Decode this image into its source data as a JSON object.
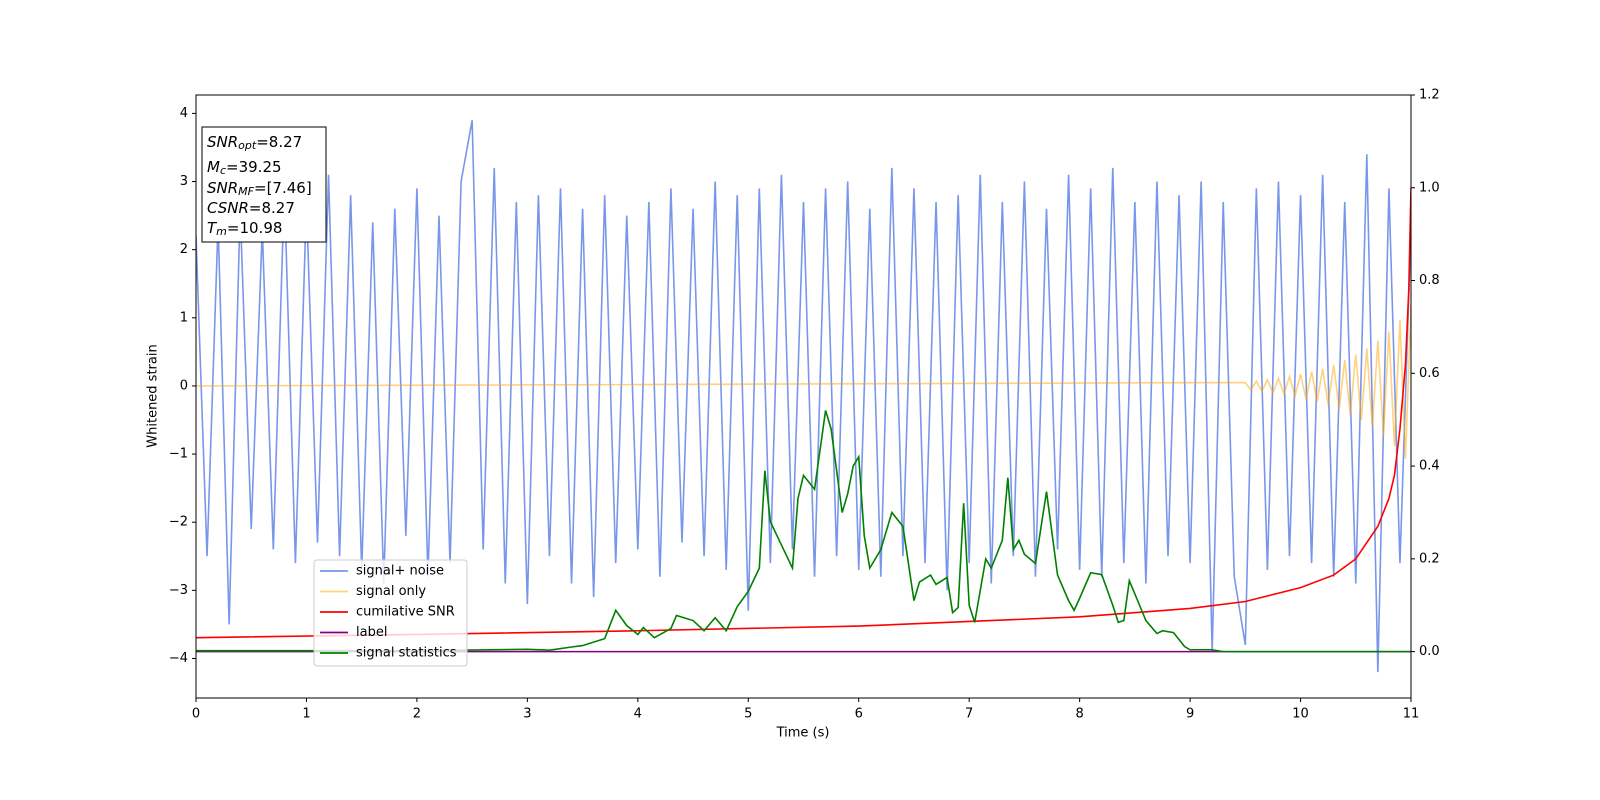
{
  "chart_data": {
    "type": "line",
    "xlabel": "Time (s)",
    "ylabel": "Whitened strain",
    "xlim": [
      0,
      11
    ],
    "ylim": [
      -4.58,
      4.27
    ],
    "y2lim": [
      -0.1,
      1.2
    ],
    "xticks": [
      0,
      1,
      2,
      3,
      4,
      5,
      6,
      7,
      8,
      9,
      10,
      11
    ],
    "yticks": [
      {
        "value": -4,
        "label": "−4"
      },
      {
        "value": -3,
        "label": "−3"
      },
      {
        "value": -2,
        "label": "−2"
      },
      {
        "value": -1,
        "label": "−1"
      },
      0,
      1,
      2,
      3,
      4
    ],
    "y2ticks": [
      {
        "value": 0,
        "label": "0.0"
      },
      0.2,
      0.4,
      0.6,
      0.8,
      {
        "value": 1,
        "label": "1.0"
      },
      1.2
    ],
    "legend": "lower left",
    "annotation": [
      {
        "base": "SNR",
        "sub": "opt",
        "text": "=8.27"
      },
      {
        "base": "M",
        "sub": "c",
        "text": "=39.25"
      },
      {
        "base": "SNR",
        "sub": "MF",
        "text": "=[7.46]"
      },
      {
        "base": "CSNR",
        "text": "=8.27"
      },
      {
        "base": "T",
        "sub": "m",
        "text": "=10.98"
      }
    ],
    "series": [
      {
        "name": "signal+ noise",
        "color": "#4169e1",
        "opacity": 0.7,
        "axis": "y",
        "x": [
          0,
          0.1,
          0.2,
          0.3,
          0.4,
          0.5,
          0.6,
          0.7,
          0.8,
          0.9,
          1,
          1.1,
          1.2,
          1.3,
          1.4,
          1.5,
          1.6,
          1.7,
          1.8,
          1.9,
          2,
          2.1,
          2.2,
          2.3,
          2.4,
          2.5,
          2.6,
          2.7,
          2.8,
          2.9,
          3,
          3.1,
          3.2,
          3.3,
          3.4,
          3.5,
          3.6,
          3.7,
          3.8,
          3.9,
          4,
          4.1,
          4.2,
          4.3,
          4.4,
          4.5,
          4.6,
          4.7,
          4.8,
          4.9,
          5,
          5.1,
          5.2,
          5.3,
          5.4,
          5.5,
          5.6,
          5.7,
          5.8,
          5.9,
          6,
          6.1,
          6.2,
          6.3,
          6.4,
          6.5,
          6.6,
          6.7,
          6.8,
          6.9,
          7,
          7.1,
          7.2,
          7.3,
          7.4,
          7.5,
          7.6,
          7.7,
          7.8,
          7.9,
          8,
          8.1,
          8.2,
          8.3,
          8.4,
          8.5,
          8.6,
          8.7,
          8.8,
          8.9,
          9,
          9.1,
          9.2,
          9.3,
          9.4,
          9.5,
          9.6,
          9.7,
          9.8,
          9.9,
          10,
          10.1,
          10.2,
          10.3,
          10.4,
          10.5,
          10.6,
          10.7,
          10.8,
          10.9,
          11
        ],
        "values": [
          2.2,
          -2.5,
          2.4,
          -3.5,
          2.6,
          -2.1,
          2.3,
          -2.4,
          2.9,
          -2.6,
          2.7,
          -2.3,
          3.1,
          -2.5,
          2.8,
          -2.7,
          2.4,
          -2.9,
          2.6,
          -2.2,
          2.9,
          -2.8,
          2.5,
          -2.6,
          3.0,
          3.9,
          -2.4,
          3.2,
          -2.9,
          2.7,
          -3.2,
          2.8,
          -2.5,
          2.9,
          -2.9,
          2.6,
          -3.1,
          2.8,
          -2.6,
          2.5,
          -2.4,
          2.7,
          -2.8,
          2.9,
          -2.3,
          2.6,
          -2.5,
          3.0,
          -2.7,
          2.8,
          -3.3,
          2.9,
          -2.6,
          3.1,
          -2.4,
          2.7,
          -2.8,
          2.9,
          -2.5,
          3.0,
          -2.7,
          2.6,
          -2.8,
          3.2,
          -2.5,
          2.9,
          -2.6,
          2.7,
          -3.0,
          2.8,
          -2.6,
          3.1,
          -2.9,
          2.7,
          -2.5,
          3.0,
          -2.8,
          2.6,
          -2.4,
          3.1,
          -2.7,
          2.9,
          -2.8,
          3.2,
          -2.6,
          2.7,
          -2.9,
          3.0,
          -2.5,
          2.8,
          -2.6,
          3.0,
          -3.9,
          2.7,
          -2.8,
          -3.8,
          2.9,
          -2.7,
          3.0,
          -2.5,
          2.8,
          -2.6,
          3.1,
          -2.8,
          2.7,
          -2.9,
          3.4,
          -4.2,
          2.9,
          -2.6,
          2.3
        ]
      },
      {
        "name": "signal only",
        "color": "#ffa500",
        "opacity": 0.5,
        "axis": "y",
        "x": [
          0,
          9.5,
          9.55,
          9.6,
          9.65,
          9.7,
          9.75,
          9.8,
          9.85,
          9.9,
          9.95,
          10,
          10.05,
          10.1,
          10.15,
          10.2,
          10.25,
          10.3,
          10.35,
          10.4,
          10.45,
          10.5,
          10.55,
          10.6,
          10.65,
          10.7,
          10.75,
          10.8,
          10.85,
          10.9,
          10.95,
          11
        ],
        "values": [
          0,
          0.05,
          -0.06,
          0.07,
          -0.08,
          0.09,
          -0.1,
          0.11,
          -0.12,
          0.14,
          -0.15,
          0.17,
          -0.19,
          0.21,
          -0.23,
          0.25,
          -0.28,
          0.31,
          -0.34,
          0.38,
          -0.42,
          0.46,
          -0.5,
          0.55,
          -0.6,
          0.66,
          -0.73,
          0.8,
          -0.88,
          0.97,
          -1.07,
          1.2
        ]
      },
      {
        "name": "cumilative SNR",
        "color": "#ff0000",
        "opacity": 1,
        "axis": "y2",
        "x": [
          0,
          2,
          4,
          6,
          8,
          9,
          9.5,
          10,
          10.3,
          10.5,
          10.7,
          10.8,
          10.85,
          10.9,
          10.95,
          10.98,
          11
        ],
        "values": [
          0.03,
          0.037,
          0.045,
          0.055,
          0.075,
          0.093,
          0.108,
          0.138,
          0.165,
          0.2,
          0.27,
          0.33,
          0.38,
          0.48,
          0.62,
          0.78,
          1.0
        ]
      },
      {
        "name": "label",
        "color": "#800080",
        "opacity": 1,
        "axis": "y2",
        "x": [
          0,
          11
        ],
        "values": [
          0,
          0
        ]
      },
      {
        "name": "signal statistics",
        "color": "#008000",
        "opacity": 1,
        "axis": "y2",
        "x": [
          0,
          1,
          2,
          3,
          3.2,
          3.4,
          3.5,
          3.7,
          3.8,
          3.9,
          4.0,
          4.05,
          4.15,
          4.3,
          4.35,
          4.5,
          4.6,
          4.7,
          4.8,
          4.9,
          5.0,
          5.1,
          5.15,
          5.2,
          5.3,
          5.4,
          5.45,
          5.5,
          5.6,
          5.7,
          5.75,
          5.85,
          5.9,
          5.95,
          6.0,
          6.05,
          6.1,
          6.2,
          6.3,
          6.4,
          6.5,
          6.55,
          6.65,
          6.7,
          6.8,
          6.85,
          6.9,
          6.95,
          7.0,
          7.05,
          7.15,
          7.2,
          7.3,
          7.35,
          7.4,
          7.45,
          7.5,
          7.6,
          7.7,
          7.8,
          7.9,
          7.95,
          8.0,
          8.1,
          8.2,
          8.3,
          8.35,
          8.4,
          8.45,
          8.6,
          8.7,
          8.75,
          8.85,
          8.95,
          9.0,
          9.2,
          9.3,
          11
        ],
        "values": [
          0.002,
          0.002,
          0.002,
          0.005,
          0.003,
          0.01,
          0.013,
          0.028,
          0.089,
          0.056,
          0.037,
          0.052,
          0.03,
          0.05,
          0.078,
          0.067,
          0.045,
          0.073,
          0.045,
          0.097,
          0.13,
          0.18,
          0.39,
          0.28,
          0.23,
          0.18,
          0.33,
          0.38,
          0.35,
          0.52,
          0.48,
          0.3,
          0.34,
          0.4,
          0.42,
          0.25,
          0.18,
          0.22,
          0.3,
          0.27,
          0.11,
          0.15,
          0.165,
          0.145,
          0.16,
          0.084,
          0.095,
          0.32,
          0.1,
          0.063,
          0.2,
          0.18,
          0.24,
          0.375,
          0.22,
          0.24,
          0.21,
          0.19,
          0.345,
          0.165,
          0.11,
          0.089,
          0.115,
          0.17,
          0.166,
          0.1,
          0.063,
          0.067,
          0.153,
          0.067,
          0.039,
          0.045,
          0.041,
          0.011,
          0.004,
          0.004,
          0,
          0
        ]
      }
    ]
  }
}
